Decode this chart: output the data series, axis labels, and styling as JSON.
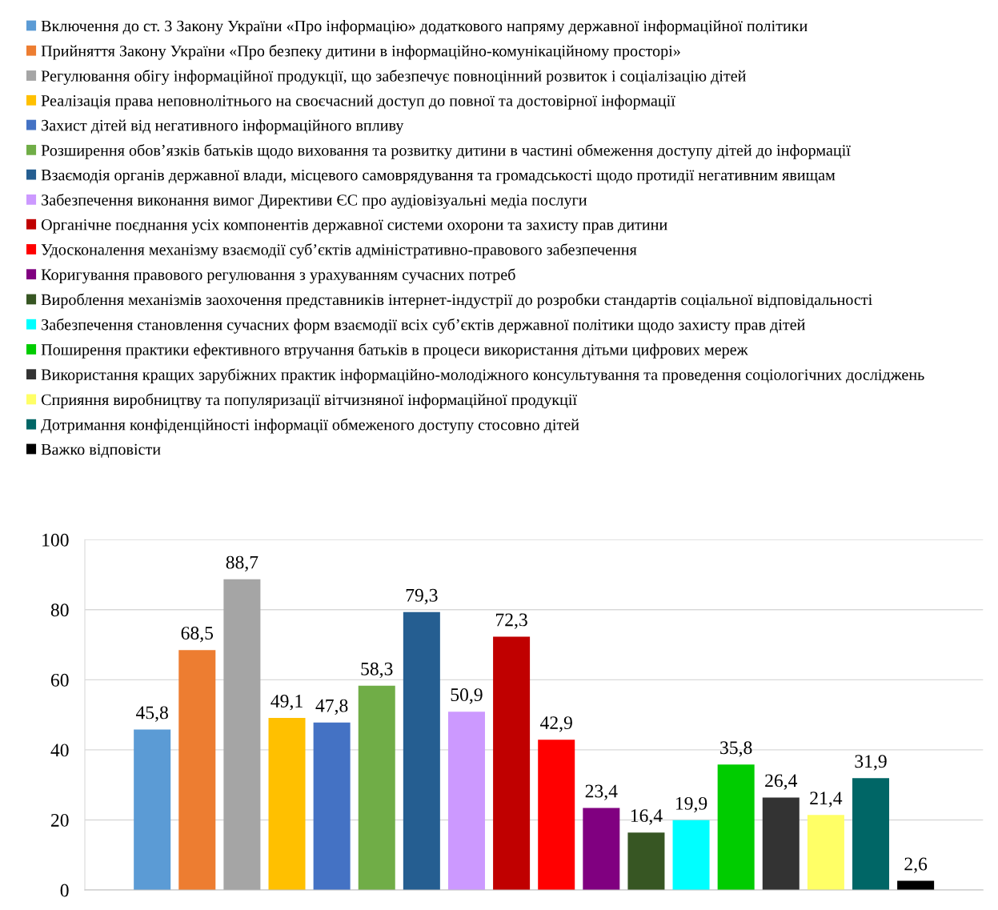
{
  "chart_data": {
    "type": "bar",
    "categories": [
      null
    ],
    "ylim": [
      0,
      100
    ],
    "yticks": [
      0,
      20,
      40,
      60,
      80,
      100
    ],
    "grid": "y",
    "legend": "top",
    "tick_labels": "y",
    "series": [
      {
        "name": "Включення до ст. 3 Закону України «Про інформацію» додаткового напряму державної інформаційної політики",
        "color": "#5b9bd5",
        "values": [
          45.8
        ],
        "value_labels": [
          "45,8"
        ]
      },
      {
        "name": "Прийняття Закону України «Про безпеку дитини в інформаційно-комунікаційному просторі»",
        "color": "#ed7d31",
        "values": [
          68.5
        ],
        "value_labels": [
          "68,5"
        ]
      },
      {
        "name": "Регулювання обігу інформаційної продукції, що забезпечує повноцінний розвиток і соціалізацію дітей",
        "color": "#a5a5a5",
        "values": [
          88.7
        ],
        "value_labels": [
          "88,7"
        ]
      },
      {
        "name": "Реалізація права неповнолітнього на своєчасний доступ до повної та достовірної інформації",
        "color": "#ffc000",
        "values": [
          49.1
        ],
        "value_labels": [
          "49,1"
        ]
      },
      {
        "name": "Захист дітей від негативного інформаційного впливу",
        "color": "#4472c4",
        "values": [
          47.8
        ],
        "value_labels": [
          "47,8"
        ]
      },
      {
        "name": "Розширення обов’язків батьків щодо виховання та розвитку дитини в частині обмеження доступу дітей до інформації",
        "color": "#70ad47",
        "values": [
          58.3
        ],
        "value_labels": [
          "58,3"
        ]
      },
      {
        "name": "Взаємодія органів державної влади, місцевого самоврядування та громадськості щодо протидії негативним явищам",
        "color": "#255e91",
        "values": [
          79.3
        ],
        "value_labels": [
          "79,3"
        ]
      },
      {
        "name": "Забезпечення виконання вимог Директиви ЄС про аудіовізуальні медіа послуги",
        "color": "#cc99ff",
        "values": [
          50.9
        ],
        "value_labels": [
          "50,9"
        ]
      },
      {
        "name": "Органічне поєднання усіх компонентів державної системи охорони та захисту прав дитини",
        "color": "#c00000",
        "values": [
          72.3
        ],
        "value_labels": [
          "72,3"
        ]
      },
      {
        "name": "Удосконалення механізму взаємодії суб’єктів адміністративно-правового забезпечення",
        "color": "#ff0000",
        "values": [
          42.9
        ],
        "value_labels": [
          "42,9"
        ]
      },
      {
        "name": "Коригування правового регулювання з урахуванням сучасних потреб",
        "color": "#800080",
        "values": [
          23.4
        ],
        "value_labels": [
          "23,4"
        ]
      },
      {
        "name": "Вироблення механізмів заохочення представників інтернет-індустрії до розробки стандартів соціальної відповідальності",
        "color": "#375623",
        "values": [
          16.4
        ],
        "value_labels": [
          "16,4"
        ]
      },
      {
        "name": "Забезпечення становлення сучасних форм взаємодії всіх суб’єктів державної політики щодо захисту прав дітей",
        "color": "#00ffff",
        "values": [
          19.9
        ],
        "value_labels": [
          "19,9"
        ]
      },
      {
        "name": "Поширення практики ефективного втручання батьків в процеси використання дітьми цифрових мереж",
        "color": "#00cc00",
        "values": [
          35.8
        ],
        "value_labels": [
          "35,8"
        ]
      },
      {
        "name": "Використання кращих зарубіжних практик інформаційно-молодіжного консультування та проведення соціологічних досліджень",
        "color": "#333333",
        "values": [
          26.4
        ],
        "value_labels": [
          "26,4"
        ]
      },
      {
        "name": "Сприяння виробництву та популяризації вітчизняної інформаційної продукції",
        "color": "#ffff66",
        "values": [
          21.4
        ],
        "value_labels": [
          "21,4"
        ]
      },
      {
        "name": "Дотримання конфіденційності інформації обмеженого доступу стосовно дітей",
        "color": "#006666",
        "values": [
          31.9
        ],
        "value_labels": [
          "31,9"
        ]
      },
      {
        "name": "Важко відповісти",
        "color": "#000000",
        "values": [
          2.6
        ],
        "value_labels": [
          "2,6"
        ]
      }
    ]
  }
}
